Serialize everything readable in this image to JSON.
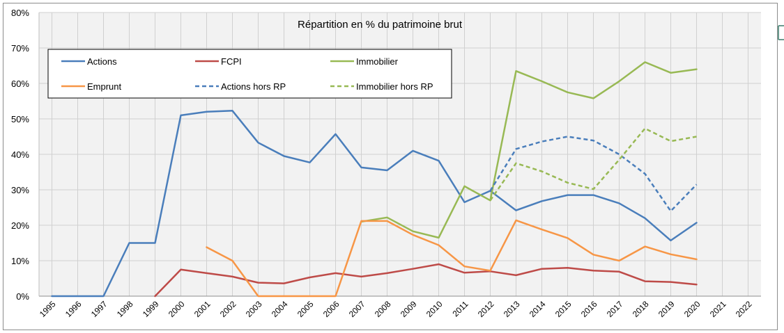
{
  "chart_data": {
    "type": "line",
    "title": "Répartition en % du patrimoine brut",
    "xlabel": "",
    "ylabel": "",
    "ylim": [
      0,
      80
    ],
    "grid": true,
    "legend_position": "top-left",
    "categories": [
      "1995",
      "1996",
      "1997",
      "1998",
      "1999",
      "2000",
      "2001",
      "2002",
      "2003",
      "2004",
      "2005",
      "2006",
      "2007",
      "2008",
      "2009",
      "2010",
      "2011",
      "2012",
      "2013",
      "2014",
      "2015",
      "2016",
      "2017",
      "2018",
      "2019",
      "2020",
      "2021",
      "2022"
    ],
    "y_ticks": [
      "0%",
      "10%",
      "20%",
      "30%",
      "40%",
      "50%",
      "60%",
      "70%",
      "80%"
    ],
    "series": [
      {
        "name": "Actions",
        "color": "#4a7ebb",
        "dashed": false,
        "values": [
          0,
          0,
          0,
          15,
          15,
          51,
          52,
          52.3,
          43.3,
          39.5,
          37.7,
          45.7,
          36.3,
          35.5,
          41,
          38.2,
          26.5,
          29.7,
          24.2,
          26.8,
          28.5,
          28.5,
          26.2,
          22,
          15.7,
          20.7,
          null,
          null
        ]
      },
      {
        "name": "FCPI",
        "color": "#be4b48",
        "dashed": false,
        "values": [
          null,
          null,
          null,
          null,
          0,
          7.5,
          6.5,
          5.5,
          3.8,
          3.6,
          5.3,
          6.5,
          5.5,
          6.5,
          7.7,
          9,
          6.6,
          7,
          5.9,
          7.7,
          8,
          7.2,
          6.9,
          4.2,
          4,
          3.3,
          null,
          null
        ]
      },
      {
        "name": "Immobilier",
        "color": "#98b954",
        "dashed": false,
        "values": [
          null,
          null,
          null,
          null,
          null,
          null,
          null,
          null,
          null,
          null,
          null,
          null,
          21,
          22.2,
          18.3,
          16.5,
          31,
          27,
          63.5,
          60.6,
          57.5,
          55.8,
          60.6,
          66,
          63,
          64,
          null,
          null
        ]
      },
      {
        "name": "Emprunt",
        "color": "#f79646",
        "dashed": false,
        "values": [
          null,
          null,
          null,
          null,
          null,
          null,
          13.8,
          10,
          0,
          0,
          0,
          0,
          21.2,
          21.2,
          17.3,
          14.4,
          8.4,
          7.2,
          21.4,
          18.8,
          16.4,
          11.7,
          10,
          14,
          11.8,
          10.4,
          null,
          null
        ]
      },
      {
        "name": "Actions hors RP",
        "color": "#4a7ebb",
        "dashed": true,
        "values": [
          null,
          null,
          null,
          null,
          null,
          null,
          null,
          null,
          null,
          null,
          null,
          null,
          null,
          null,
          null,
          null,
          null,
          29.7,
          41.5,
          43.6,
          45,
          43.9,
          40,
          34.5,
          24,
          31.5,
          null,
          null
        ]
      },
      {
        "name": "Immobilier hors RP",
        "color": "#98b954",
        "dashed": true,
        "values": [
          null,
          null,
          null,
          null,
          null,
          null,
          null,
          null,
          null,
          null,
          null,
          null,
          null,
          null,
          null,
          null,
          null,
          27,
          37.5,
          35.2,
          32,
          30.2,
          38.5,
          47.3,
          43.7,
          45,
          null,
          null
        ]
      }
    ]
  }
}
